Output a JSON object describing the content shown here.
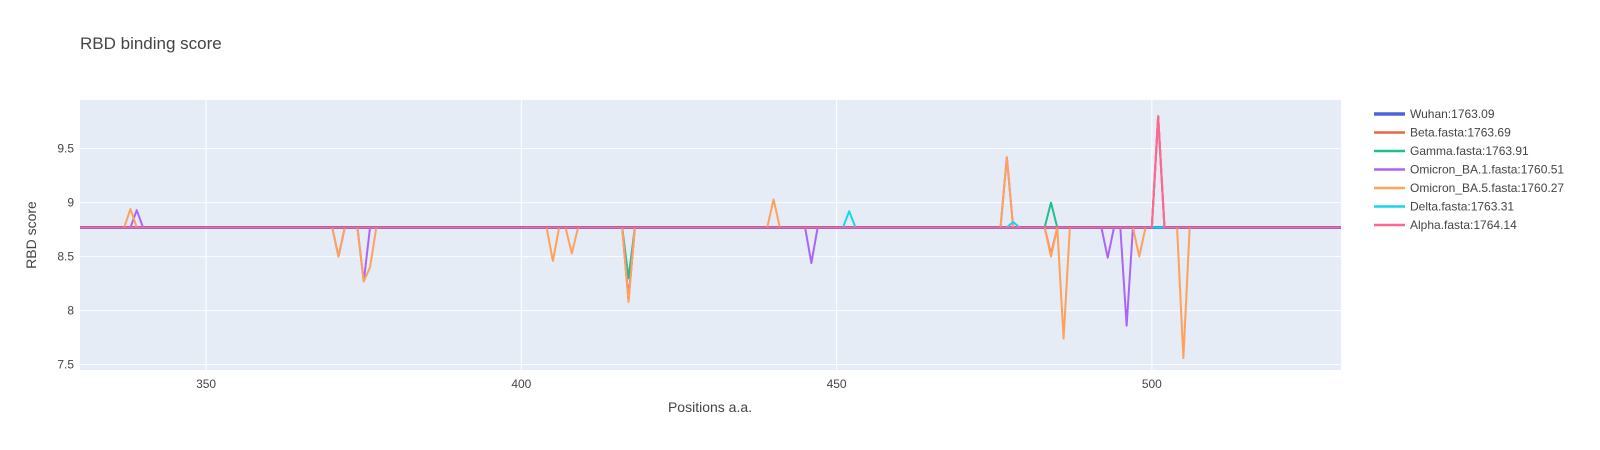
{
  "chart_data": {
    "type": "line",
    "title": "RBD binding score",
    "xlabel": "Positions a.a.",
    "ylabel": "RBD score",
    "xlim": [
      330,
      530
    ],
    "ylim": [
      7.45,
      9.95
    ],
    "xticks": [
      350,
      400,
      450,
      500
    ],
    "xtick_labels": [
      "350",
      "400",
      "450",
      "500"
    ],
    "yticks": [
      7.5,
      8,
      8.5,
      9,
      9.5
    ],
    "ytick_labels": [
      "7.5",
      "8",
      "8.5",
      "9",
      "9.5"
    ],
    "grid": true,
    "legend_position": "right",
    "baseline": 8.77,
    "series": [
      {
        "name": "Wuhan:1763.09",
        "color": "#4c63d8",
        "width": 3,
        "x": [
          330,
          530
        ],
        "y": [
          8.77,
          8.77
        ]
      },
      {
        "name": "Beta.fasta:1763.69",
        "color": "#e8664a",
        "width": 2,
        "x": [
          330,
          416,
          417,
          418,
          483,
          484,
          485,
          500,
          501,
          502,
          530
        ],
        "y": [
          8.77,
          8.77,
          8.1,
          8.77,
          8.77,
          8.52,
          8.77,
          8.77,
          9.8,
          8.77,
          8.77
        ]
      },
      {
        "name": "Gamma.fasta:1763.91",
        "color": "#1fbf8f",
        "width": 2,
        "x": [
          330,
          416,
          417,
          418,
          483,
          484,
          485,
          500,
          501,
          502,
          530
        ],
        "y": [
          8.77,
          8.77,
          8.3,
          8.77,
          8.77,
          9.0,
          8.77,
          8.77,
          9.8,
          8.77,
          8.77
        ]
      },
      {
        "name": "Omicron_BA.1.fasta:1760.51",
        "color": "#ab63fa",
        "width": 2,
        "x": [
          330,
          338,
          339,
          340,
          370,
          371,
          372,
          374,
          375,
          376,
          416,
          417,
          418,
          445,
          446,
          447,
          476,
          477,
          478,
          492,
          493,
          494,
          495,
          496,
          497,
          500,
          501,
          502,
          530
        ],
        "y": [
          8.77,
          8.77,
          8.93,
          8.77,
          8.77,
          8.5,
          8.77,
          8.77,
          8.27,
          8.77,
          8.77,
          8.1,
          8.77,
          8.77,
          8.44,
          8.77,
          8.77,
          9.42,
          8.77,
          8.77,
          8.49,
          8.77,
          8.77,
          7.86,
          8.77,
          8.77,
          9.8,
          8.77,
          8.77
        ]
      },
      {
        "name": "Omicron_BA.5.fasta:1760.27",
        "color": "#ffa15a",
        "width": 2,
        "x": [
          330,
          337,
          338,
          339,
          370,
          371,
          372,
          373,
          374,
          375,
          376,
          377,
          404,
          405,
          406,
          407,
          408,
          409,
          416,
          417,
          418,
          439,
          440,
          441,
          476,
          477,
          478,
          483,
          484,
          485,
          486,
          487,
          497,
          498,
          499,
          500,
          501,
          502,
          504,
          505,
          506,
          530
        ],
        "y": [
          8.77,
          8.77,
          8.94,
          8.77,
          8.77,
          8.5,
          8.77,
          8.77,
          8.77,
          8.27,
          8.4,
          8.77,
          8.77,
          8.46,
          8.77,
          8.77,
          8.53,
          8.77,
          8.77,
          8.08,
          8.77,
          8.77,
          9.03,
          8.77,
          8.77,
          9.42,
          8.77,
          8.77,
          8.5,
          8.77,
          7.74,
          8.77,
          8.77,
          8.5,
          8.77,
          8.77,
          9.8,
          8.77,
          8.77,
          7.56,
          8.77,
          8.77
        ]
      },
      {
        "name": "Delta.fasta:1763.31",
        "color": "#19d3f3",
        "width": 2,
        "x": [
          330,
          451,
          452,
          453,
          477,
          478,
          479,
          530
        ],
        "y": [
          8.77,
          8.77,
          8.92,
          8.77,
          8.77,
          8.82,
          8.77,
          8.77
        ]
      },
      {
        "name": "Alpha.fasta:1764.14",
        "color": "#ff6692",
        "width": 2,
        "x": [
          330,
          500,
          501,
          502,
          530
        ],
        "y": [
          8.77,
          8.77,
          9.8,
          8.77,
          8.77
        ]
      }
    ]
  }
}
